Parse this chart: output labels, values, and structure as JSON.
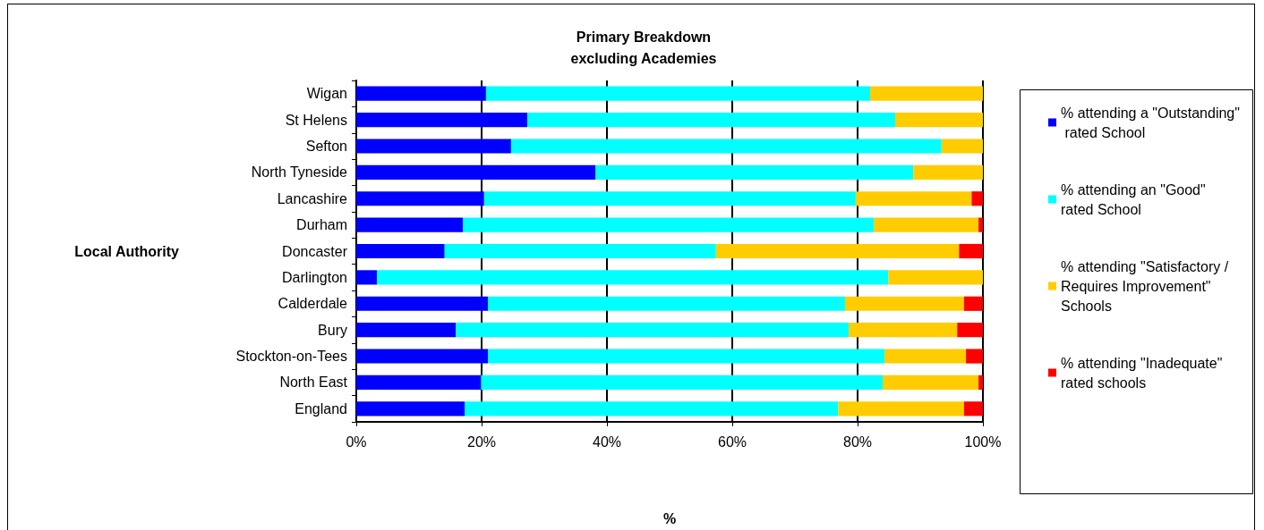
{
  "chart_data": {
    "type": "bar",
    "orientation": "horizontal",
    "stacked": true,
    "title": "Primary Breakdown\nexcluding Academies",
    "xlabel": "%",
    "ylabel": "Local Authority",
    "categories": [
      "Wigan",
      "St Helens",
      "Sefton",
      "North Tyneside",
      "Lancashire",
      "Durham",
      "Doncaster",
      "Darlington",
      "Calderdale",
      "Bury",
      "Stockton-on-Tees",
      "North East",
      "England"
    ],
    "series": [
      {
        "name": "% attending a \"Outstanding\" rated School",
        "color": "#0000ff",
        "values": [
          20.7,
          27.3,
          24.7,
          38.2,
          20.4,
          17.0,
          14.1,
          3.3,
          21.0,
          15.9,
          21.0,
          19.9,
          17.3
        ]
      },
      {
        "name": "% attending an \"Good\" rated School",
        "color": "#00ffff",
        "values": [
          61.3,
          58.7,
          68.7,
          50.7,
          59.3,
          65.6,
          43.3,
          81.6,
          57.0,
          62.7,
          63.3,
          64.1,
          59.6
        ]
      },
      {
        "name": "% attending \"Satisfactory / Requires Improvement\" Schools",
        "color": "#ffcc00",
        "values": [
          18.0,
          14.0,
          6.6,
          11.1,
          18.5,
          16.7,
          38.8,
          15.1,
          19.0,
          17.3,
          13.0,
          15.3,
          20.1
        ]
      },
      {
        "name": "% attending \"Inadequate\" rated schools",
        "color": "#ff0000",
        "values": [
          0,
          0,
          0,
          0,
          1.8,
          0.7,
          3.8,
          0,
          3.0,
          4.1,
          2.7,
          0.7,
          3.0
        ]
      }
    ],
    "xlim": [
      0,
      100
    ],
    "xticks": [
      {
        "value": 0,
        "label": "0%"
      },
      {
        "value": 20,
        "label": "20%"
      },
      {
        "value": 40,
        "label": "40%"
      },
      {
        "value": 60,
        "label": "60%"
      },
      {
        "value": 80,
        "label": "80%"
      },
      {
        "value": 100,
        "label": "100%"
      }
    ],
    "grid": "x",
    "legend": "right"
  }
}
